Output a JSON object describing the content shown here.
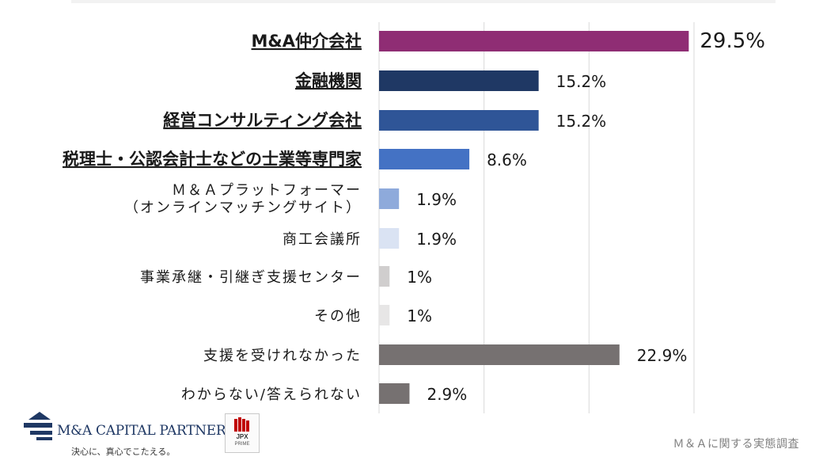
{
  "chart_data": {
    "type": "bar",
    "orientation": "horizontal",
    "categories": [
      [
        "M&A仲介会社"
      ],
      [
        "金融機関"
      ],
      [
        "経営コンサルティング会社"
      ],
      [
        "税理士・公認会計士などの士業等専門家"
      ],
      [
        "Ｍ＆Ａプラットフォーマー",
        "（オンラインマッチングサイト）"
      ],
      [
        "商工会議所"
      ],
      [
        "事業承継・引継ぎ支援センター"
      ],
      [
        "その他"
      ],
      [
        "支援を受けれなかった"
      ],
      [
        "わからない/答えられない"
      ]
    ],
    "values": [
      29.5,
      15.2,
      15.2,
      8.6,
      1.9,
      1.9,
      1,
      1,
      22.9,
      2.9
    ],
    "value_labels": [
      "29.5%",
      "15.2%",
      "15.2%",
      "8.6%",
      "1.9%",
      "1.9%",
      "1%",
      "1%",
      "22.9%",
      "2.9%"
    ],
    "colors": [
      "#8f2d74",
      "#1f3864",
      "#2f5597",
      "#4472c4",
      "#8eaadb",
      "#dae3f3",
      "#d0cece",
      "#e7e6e6",
      "#767171",
      "#767171"
    ],
    "emphasized_categories": [
      0,
      1,
      2,
      3
    ],
    "xlim": [
      0,
      30
    ],
    "grid": true,
    "title": "",
    "xlabel": "",
    "ylabel": ""
  },
  "footer": {
    "company_name": "M&A CAPITAL PARTNERS",
    "tagline": "決心に、真心でこたえる。",
    "badge_title": "JPX",
    "badge_sub": "PRIME",
    "source": "Ｍ＆Ａに関する実態調査"
  }
}
